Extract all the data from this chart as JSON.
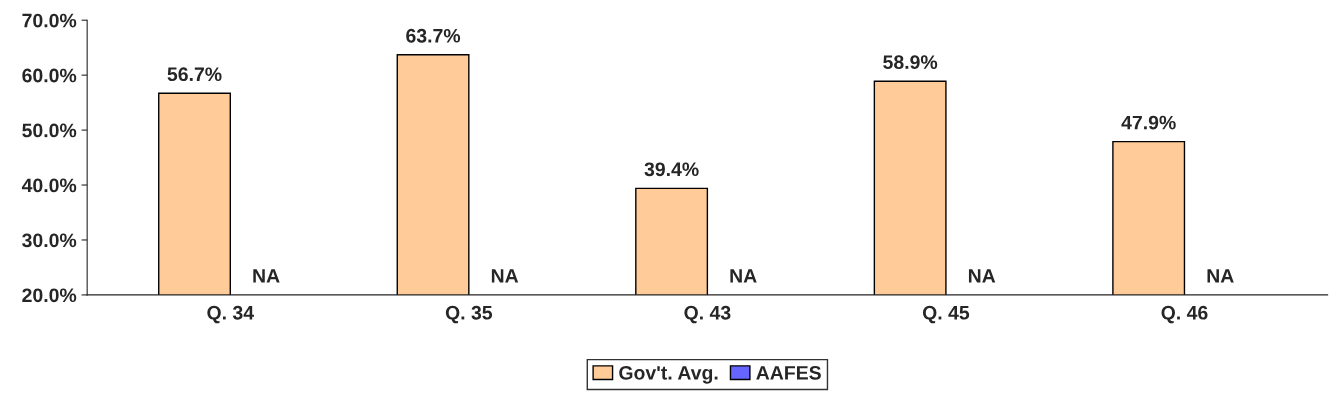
{
  "chart_data": {
    "type": "bar",
    "categories": [
      "Q. 34",
      "Q. 35",
      "Q. 43",
      "Q. 45",
      "Q. 46"
    ],
    "series": [
      {
        "name": "Gov't. Avg.",
        "color": "#ffcc99",
        "values": [
          56.7,
          63.7,
          39.4,
          58.9,
          47.9
        ],
        "value_labels": [
          "56.7%",
          "63.7%",
          "39.4%",
          "58.9%",
          "47.9%"
        ]
      },
      {
        "name": "AAFES",
        "color": "#6666ff",
        "values": [
          null,
          null,
          null,
          null,
          null
        ],
        "value_labels": [
          "NA",
          "NA",
          "NA",
          "NA",
          "NA"
        ]
      }
    ],
    "ylim": [
      20,
      70
    ],
    "yticks": [
      {
        "value": 20,
        "label": "20.0%"
      },
      {
        "value": 30,
        "label": "30.0%"
      },
      {
        "value": 40,
        "label": "40.0%"
      },
      {
        "value": 50,
        "label": "50.0%"
      },
      {
        "value": 60,
        "label": "60.0%"
      },
      {
        "value": 70,
        "label": "70.0%"
      }
    ],
    "grid": false,
    "legend": "bottom"
  }
}
